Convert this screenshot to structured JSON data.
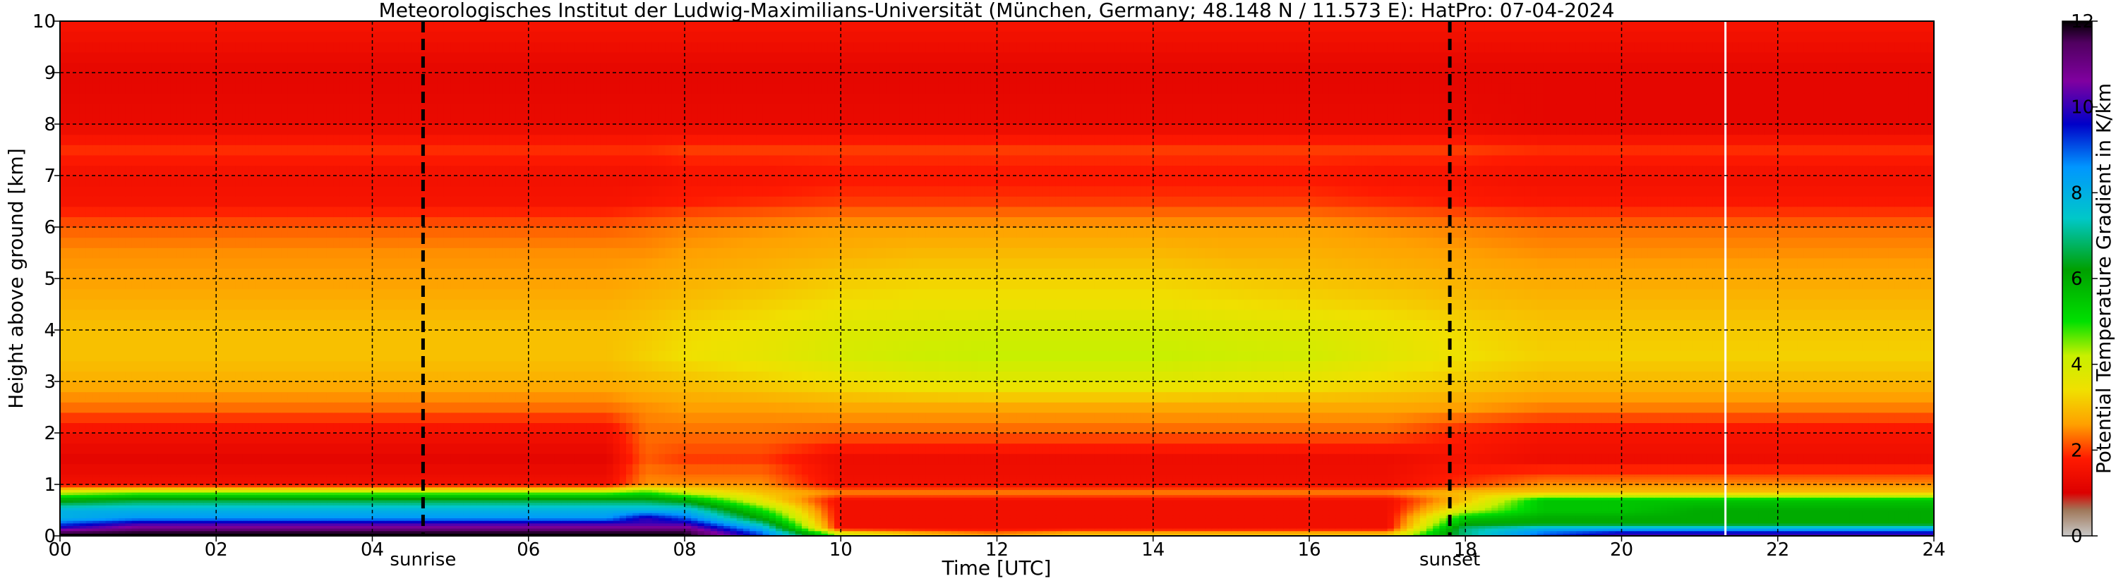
{
  "chart_data": {
    "type": "heatmap",
    "title": "Meteorologisches Institut der Ludwig-Maximilians-Universität (München, Germany; 48.148 N / 11.573 E):    HatPro: 07-04-2024",
    "xlabel": "Time [UTC]",
    "ylabel": "Height above ground [km]",
    "xlim": [
      0,
      24
    ],
    "ylim": [
      0,
      10
    ],
    "x_ticks": [
      0,
      2,
      4,
      6,
      8,
      10,
      12,
      14,
      16,
      18,
      20,
      22,
      24
    ],
    "x_tick_labels": [
      "00",
      "02",
      "04",
      "06",
      "08",
      "10",
      "12",
      "14",
      "16",
      "18",
      "20",
      "22",
      "24"
    ],
    "y_ticks": [
      0,
      1,
      2,
      3,
      4,
      5,
      6,
      7,
      8,
      9,
      10
    ],
    "y_tick_labels": [
      "0",
      "1",
      "2",
      "3",
      "4",
      "5",
      "6",
      "7",
      "8",
      "9",
      "10"
    ],
    "grid": true,
    "colorbar": {
      "label": "Potential Temperature Gradient in K/km",
      "range": [
        0,
        12
      ],
      "ticks": [
        0,
        2,
        4,
        6,
        8,
        10,
        12
      ],
      "tick_labels": [
        "0",
        "2",
        "4",
        "6",
        "8",
        "10",
        "12"
      ]
    },
    "annotations": [
      {
        "label": "sunrise",
        "x": 4.65
      },
      {
        "label": "sunset",
        "x": 17.8
      }
    ],
    "time_columns": [
      0,
      1,
      2,
      3,
      4,
      5,
      6,
      7,
      7.5,
      8,
      9,
      10,
      11,
      12,
      13,
      14,
      15,
      16,
      17,
      18,
      19,
      20,
      21,
      22,
      23,
      24
    ],
    "height_levels_km": [
      0.05,
      0.15,
      0.25,
      0.35,
      0.5,
      0.7,
      0.85,
      1.0,
      1.5,
      2.0,
      2.5,
      3.0,
      3.5,
      4.0,
      4.5,
      5.0,
      5.5,
      6.0,
      6.5,
      7.0,
      7.5,
      8.0,
      9.0,
      10.0
    ],
    "gradient_K_per_km": [
      [
        12,
        12,
        12,
        12,
        12,
        12,
        12,
        12,
        12,
        12,
        9,
        4,
        3,
        2.5,
        3,
        3,
        3,
        3,
        3,
        7,
        9,
        10,
        10,
        10,
        10,
        10
      ],
      [
        10,
        11,
        11,
        11,
        11,
        11,
        11,
        11,
        11,
        11,
        8,
        1.5,
        1.5,
        1.5,
        1.5,
        1.5,
        1.5,
        1.5,
        1.5,
        7,
        8,
        8,
        8,
        8,
        8,
        8
      ],
      [
        9,
        10,
        10,
        10,
        10,
        10,
        10,
        10,
        10,
        10,
        7,
        1.5,
        1.5,
        1.5,
        1.5,
        1.5,
        1.5,
        1.5,
        1.5,
        6,
        6,
        6,
        6,
        6,
        6,
        6
      ],
      [
        8,
        8.5,
        8.5,
        8.5,
        8.5,
        8.5,
        8.5,
        8.5,
        10,
        9,
        6,
        1.5,
        1.5,
        1.5,
        1.5,
        1.5,
        1.5,
        1.5,
        1.5,
        5.5,
        6,
        6,
        6,
        6,
        6,
        6
      ],
      [
        8,
        8,
        8,
        8,
        8,
        8,
        8,
        8,
        8,
        8,
        5,
        1.5,
        1.5,
        1.5,
        1.5,
        1.5,
        1.5,
        1.5,
        1.5,
        4,
        5.5,
        5.5,
        6,
        6,
        6,
        6
      ],
      [
        6,
        6.5,
        6.5,
        6.5,
        6.5,
        6.5,
        6.5,
        6.5,
        6.5,
        6,
        3.5,
        1.5,
        1.5,
        1.5,
        1.5,
        1.5,
        1.5,
        1.5,
        1.5,
        3,
        5.5,
        5.5,
        5.5,
        5.5,
        5.5,
        5.5
      ],
      [
        4,
        4.5,
        4.5,
        4.5,
        4.5,
        4.5,
        4.5,
        4.5,
        5,
        4,
        3,
        2.5,
        2.5,
        2.5,
        2.5,
        2.5,
        2.5,
        2.5,
        2.5,
        3,
        3,
        3,
        3,
        3,
        3,
        3
      ],
      [
        1.5,
        1.5,
        1.5,
        1.5,
        1.5,
        1.5,
        1.5,
        1.5,
        2.5,
        2.5,
        2.5,
        1.5,
        1.5,
        1.5,
        1.5,
        1.5,
        1.5,
        1.5,
        1.5,
        2,
        2.5,
        2.5,
        2.5,
        2.5,
        2.5,
        2.5
      ],
      [
        1.2,
        1.2,
        1.2,
        1.2,
        1.2,
        1.2,
        1.2,
        1.2,
        2.2,
        2.0,
        2.0,
        1.4,
        1.4,
        1.4,
        1.4,
        1.4,
        1.4,
        1.4,
        1.4,
        1.6,
        1.4,
        1.4,
        1.4,
        1.4,
        1.4,
        1.4
      ],
      [
        1.5,
        1.5,
        1.5,
        1.5,
        1.5,
        1.5,
        1.5,
        1.5,
        2.3,
        2.3,
        2.3,
        2.2,
        2.2,
        2.2,
        2.2,
        2.2,
        2.2,
        2.2,
        2.2,
        1.8,
        1.6,
        1.6,
        1.6,
        1.6,
        1.6,
        1.6
      ],
      [
        2.3,
        2.3,
        2.3,
        2.3,
        2.3,
        2.3,
        2.3,
        2.3,
        2.5,
        2.6,
        2.6,
        2.7,
        2.7,
        2.7,
        2.7,
        2.7,
        2.7,
        2.7,
        2.7,
        2.6,
        2.4,
        2.4,
        2.4,
        2.4,
        2.4,
        2.4
      ],
      [
        2.8,
        2.8,
        2.8,
        2.8,
        2.8,
        2.8,
        2.8,
        2.8,
        2.9,
        3.0,
        3.2,
        3.4,
        3.6,
        3.7,
        3.7,
        3.7,
        3.6,
        3.5,
        3.3,
        3.1,
        2.9,
        2.9,
        2.9,
        2.9,
        2.9,
        2.9
      ],
      [
        3.0,
        3.0,
        3.0,
        3.0,
        3.0,
        3.0,
        3.0,
        3.0,
        3.2,
        3.4,
        3.6,
        3.9,
        4.1,
        4.2,
        4.2,
        4.2,
        4.1,
        4.0,
        3.7,
        3.4,
        3.2,
        3.2,
        3.2,
        3.2,
        3.2,
        3.2
      ],
      [
        3.0,
        3.0,
        3.0,
        3.0,
        3.0,
        3.0,
        3.0,
        3.0,
        3.1,
        3.3,
        3.5,
        3.8,
        3.9,
        4.0,
        4.0,
        4.0,
        3.9,
        3.8,
        3.6,
        3.3,
        3.1,
        3.1,
        3.1,
        3.1,
        3.1,
        3.1
      ],
      [
        2.8,
        2.8,
        2.8,
        2.8,
        2.8,
        2.8,
        2.8,
        2.8,
        2.9,
        3.0,
        3.2,
        3.4,
        3.5,
        3.5,
        3.5,
        3.5,
        3.4,
        3.3,
        3.2,
        3.0,
        2.9,
        2.9,
        2.9,
        2.9,
        2.9,
        2.9
      ],
      [
        2.6,
        2.6,
        2.6,
        2.6,
        2.6,
        2.6,
        2.6,
        2.6,
        2.7,
        2.8,
        2.9,
        3.1,
        3.2,
        3.2,
        3.2,
        3.2,
        3.1,
        3.0,
        2.9,
        2.8,
        2.7,
        2.7,
        2.7,
        2.7,
        2.7,
        2.7
      ],
      [
        2.5,
        2.5,
        2.5,
        2.5,
        2.5,
        2.5,
        2.5,
        2.5,
        2.5,
        2.6,
        2.7,
        2.8,
        2.9,
        2.9,
        2.9,
        2.9,
        2.8,
        2.8,
        2.7,
        2.6,
        2.5,
        2.5,
        2.5,
        2.5,
        2.5,
        2.5
      ],
      [
        2.2,
        2.2,
        2.2,
        2.2,
        2.2,
        2.2,
        2.2,
        2.2,
        2.3,
        2.4,
        2.5,
        2.6,
        2.6,
        2.6,
        2.6,
        2.6,
        2.6,
        2.6,
        2.5,
        2.4,
        2.3,
        2.3,
        2.3,
        2.3,
        2.3,
        2.3
      ],
      [
        1.6,
        1.6,
        1.6,
        1.6,
        1.6,
        1.6,
        1.6,
        1.6,
        1.7,
        1.8,
        1.9,
        2.0,
        2.0,
        2.0,
        2.0,
        2.0,
        2.0,
        2.0,
        1.9,
        1.8,
        1.7,
        1.7,
        1.7,
        1.7,
        1.7,
        1.7
      ],
      [
        1.5,
        1.5,
        1.5,
        1.5,
        1.5,
        1.5,
        1.5,
        1.5,
        1.5,
        1.6,
        1.6,
        1.7,
        1.7,
        1.7,
        1.7,
        1.7,
        1.7,
        1.7,
        1.6,
        1.6,
        1.5,
        1.5,
        1.5,
        1.5,
        1.5,
        1.5
      ],
      [
        1.9,
        1.9,
        1.9,
        1.9,
        1.9,
        1.9,
        1.9,
        1.9,
        1.9,
        2.0,
        2.0,
        2.0,
        2.0,
        2.0,
        2.0,
        2.0,
        2.0,
        2.0,
        2.0,
        2.0,
        1.9,
        1.9,
        1.9,
        1.9,
        1.9,
        1.9
      ],
      [
        1.3,
        1.3,
        1.3,
        1.3,
        1.3,
        1.3,
        1.3,
        1.3,
        1.3,
        1.3,
        1.3,
        1.3,
        1.3,
        1.3,
        1.3,
        1.3,
        1.3,
        1.3,
        1.3,
        1.3,
        1.2,
        1.2,
        1.2,
        1.2,
        1.2,
        1.2
      ],
      [
        1.2,
        1.2,
        1.2,
        1.2,
        1.2,
        1.2,
        1.2,
        1.2,
        1.2,
        1.2,
        1.2,
        1.2,
        1.2,
        1.2,
        1.2,
        1.2,
        1.2,
        1.2,
        1.2,
        1.2,
        1.2,
        1.2,
        1.2,
        1.2,
        1.2,
        1.2
      ],
      [
        1.6,
        1.6,
        1.6,
        1.6,
        1.6,
        1.6,
        1.6,
        1.6,
        1.6,
        1.6,
        1.6,
        1.6,
        1.6,
        1.6,
        1.6,
        1.6,
        1.6,
        1.6,
        1.6,
        1.6,
        1.6,
        1.6,
        1.6,
        1.6,
        1.6,
        1.6
      ]
    ],
    "colormap_stops": [
      {
        "value": 0.0,
        "color": "#c8c8c8"
      },
      {
        "value": 0.6,
        "color": "#a0785a"
      },
      {
        "value": 1.0,
        "color": "#dc0000"
      },
      {
        "value": 1.8,
        "color": "#ff1a00"
      },
      {
        "value": 2.6,
        "color": "#ffa000"
      },
      {
        "value": 3.4,
        "color": "#f0e000"
      },
      {
        "value": 4.2,
        "color": "#c8f000"
      },
      {
        "value": 5.0,
        "color": "#00e000"
      },
      {
        "value": 6.2,
        "color": "#00a000"
      },
      {
        "value": 7.4,
        "color": "#00c8c8"
      },
      {
        "value": 8.6,
        "color": "#0096ff"
      },
      {
        "value": 9.6,
        "color": "#0000c8"
      },
      {
        "value": 10.6,
        "color": "#8000a0"
      },
      {
        "value": 11.5,
        "color": "#500060"
      },
      {
        "value": 12.0,
        "color": "#000000"
      }
    ],
    "colors": {
      "grid": "#000000",
      "annotation_line": "#000000",
      "data_gap": "#ffffff"
    }
  }
}
